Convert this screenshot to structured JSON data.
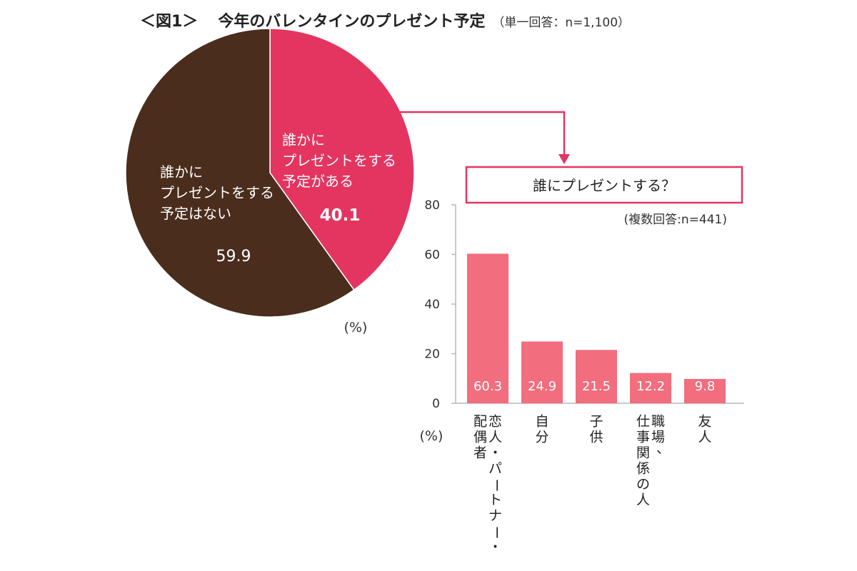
{
  "header": {
    "figure_label": "＜図1＞",
    "title": "今年のバレンタインのプレゼント予定",
    "subtitle": "（単一回答：n=1,100）"
  },
  "colors": {
    "pie_yes": "#e33560",
    "pie_no": "#4a2d1d",
    "bar": "#f26d7d",
    "connector": "#e33560",
    "axis": "#b7b7b7"
  },
  "chart_data": [
    {
      "type": "pie",
      "title": "今年のバレンタインのプレゼント予定",
      "unit_label": "(%)",
      "slices": [
        {
          "label": [
            "誰かに",
            "プレゼントをする",
            "予定がある"
          ],
          "value": 40.1,
          "value_label": "40.1"
        },
        {
          "label": [
            "誰かに",
            "プレゼントをする",
            "予定はない"
          ],
          "value": 59.9,
          "value_label": "59.9"
        }
      ]
    },
    {
      "type": "bar",
      "title": "誰にプレゼントする？",
      "subtitle": "(複数回答:n=441)",
      "ylabel": "(%)",
      "ylim": [
        0,
        80
      ],
      "yticks": [
        0,
        20,
        40,
        60,
        80
      ],
      "ytick_labels": [
        "0",
        "20",
        "40",
        "60",
        "80"
      ],
      "categories": [
        "恋人・パートナー・配偶者",
        "自分",
        "子供",
        "職場、仕事関係の人",
        "友人"
      ],
      "category_lines": [
        [
          "恋人・パートナー・",
          "配偶者"
        ],
        [
          "自分"
        ],
        [
          "子供"
        ],
        [
          "職場、",
          "仕事関係の人"
        ],
        [
          "友人"
        ]
      ],
      "values": [
        60.3,
        24.9,
        21.5,
        12.2,
        9.8
      ],
      "value_labels": [
        "60.3",
        "24.9",
        "21.5",
        "12.2",
        "9.8"
      ],
      "grid": false
    }
  ]
}
